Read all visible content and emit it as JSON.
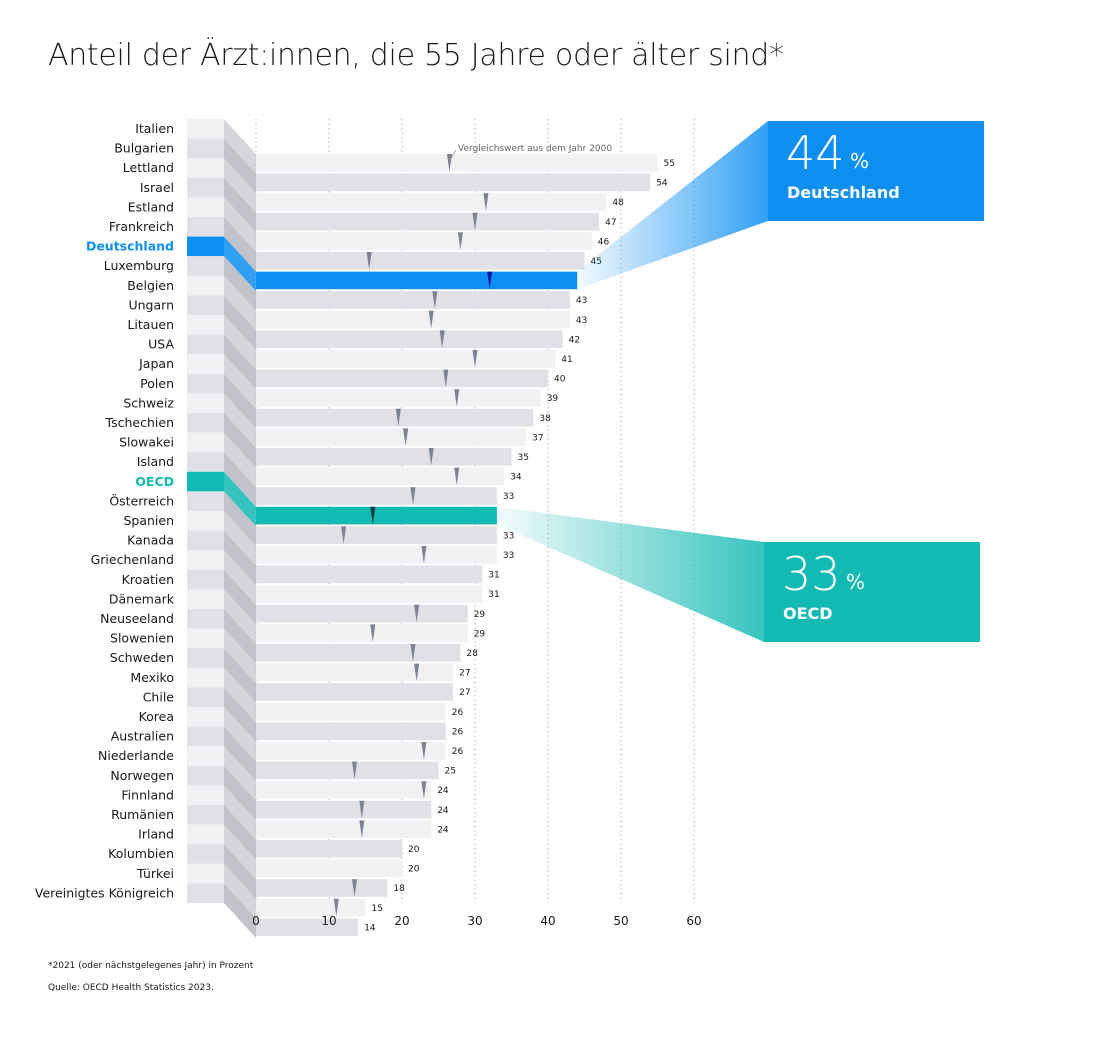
{
  "title": "Anteil der Ärzt:innen, die 55 Jahre oder älter sind*",
  "footnote": "*2021 (oder nächstgelegenes Jahr) in Prozent",
  "source": "Quelle: OECD Health Statistics 2023.",
  "colors": {
    "germany": "#0d8ff2",
    "oecd": "#13b9b3",
    "bar_light": "#f1f1f4",
    "bar_dark": "#e0e0e6",
    "marker": "#7d8290"
  },
  "callouts": [
    {
      "value": "44",
      "unit": "%",
      "label": "Deutschland",
      "color": "#0d8ff2"
    },
    {
      "value": "33",
      "unit": "%",
      "label": "OECD",
      "color": "#13b9b3"
    }
  ],
  "chart_data": {
    "type": "bar",
    "orientation": "horizontal",
    "xlim": [
      0,
      60
    ],
    "xticks": [
      0,
      10,
      20,
      30,
      40,
      50,
      60
    ],
    "grid": "vertical dotted",
    "annotation": "Vergleichswert aus dem Jahr 2000",
    "categories": [
      "Italien",
      "Bulgarien",
      "Lettland",
      "Israel",
      "Estland",
      "Frankreich",
      "Deutschland",
      "Luxemburg",
      "Belgien",
      "Ungarn",
      "Litauen",
      "USA",
      "Japan",
      "Polen",
      "Schweiz",
      "Tschechien",
      "Slowakei",
      "Island",
      "OECD",
      "Österreich",
      "Spanien",
      "Kanada",
      "Griechenland",
      "Kroatien",
      "Dänemark",
      "Neuseeland",
      "Slowenien",
      "Schweden",
      "Mexiko",
      "Chile",
      "Korea",
      "Australien",
      "Niederlande",
      "Norwegen",
      "Finnland",
      "Rumänien",
      "Irland",
      "Kolumbien",
      "Türkei",
      "Vereinigtes Königreich"
    ],
    "series": [
      {
        "values": [
          55,
          54,
          48,
          47,
          46,
          45,
          44,
          43,
          43,
          42,
          41,
          40,
          39,
          38,
          37,
          35,
          34,
          33,
          33,
          33,
          33,
          31,
          31,
          29,
          29,
          28,
          27,
          27,
          26,
          26,
          26,
          25,
          24,
          24,
          24,
          20,
          20,
          18,
          15,
          14
        ]
      },
      {
        "name": "Vergleichswert aus dem Jahr 2000",
        "values": [
          26.5,
          null,
          31.5,
          30,
          28,
          15.5,
          32,
          24.5,
          24,
          25.5,
          30,
          26,
          27.5,
          19.5,
          20.5,
          24,
          27.5,
          21.5,
          16,
          12,
          23,
          null,
          null,
          22,
          16,
          21.5,
          22,
          null,
          null,
          null,
          23,
          13.5,
          23,
          14.5,
          14.5,
          null,
          null,
          13.5,
          11,
          null
        ]
      }
    ],
    "value_labels": [
      "55",
      "54",
      "48",
      "47",
      "46",
      "45",
      "",
      "43",
      "43",
      "42",
      "41",
      "40",
      "39",
      "38",
      "37",
      "35",
      "34",
      "33",
      "",
      "33",
      "33",
      "31",
      "31",
      "29",
      "29",
      "28",
      "27",
      "27",
      "26",
      "26",
      "26",
      "25",
      "24",
      "24",
      "24",
      "20",
      "20",
      "18",
      "15",
      "14"
    ],
    "highlight": {
      "Deutschland": "germany",
      "OECD": "oecd"
    }
  }
}
